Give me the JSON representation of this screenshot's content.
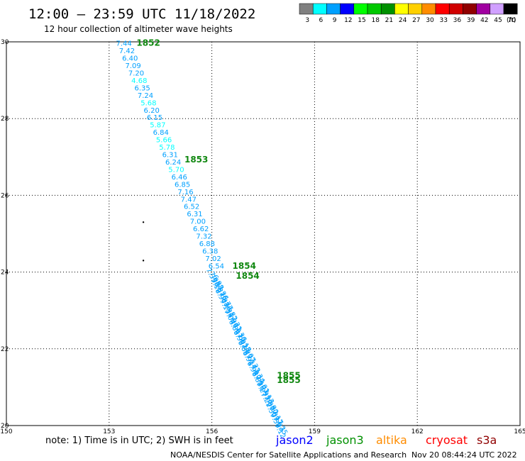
{
  "header": {
    "title": "12:00 – 23:59 UTC 11/18/2022",
    "subtitle": "12 hour collection of altimeter wave heights"
  },
  "legend": {
    "unit": "(ft)",
    "bins": [
      {
        "label": "3",
        "color": "#808080"
      },
      {
        "label": "6",
        "color": "#00ffff"
      },
      {
        "label": "9",
        "color": "#00a0ff"
      },
      {
        "label": "12",
        "color": "#0000ff"
      },
      {
        "label": "15",
        "color": "#00ff00"
      },
      {
        "label": "18",
        "color": "#00c800"
      },
      {
        "label": "21",
        "color": "#009000"
      },
      {
        "label": "24",
        "color": "#ffff00"
      },
      {
        "label": "27",
        "color": "#ffd000"
      },
      {
        "label": "30",
        "color": "#ff8c00"
      },
      {
        "label": "33",
        "color": "#ff0000"
      },
      {
        "label": "36",
        "color": "#d00000"
      },
      {
        "label": "39",
        "color": "#900000"
      },
      {
        "label": "42",
        "color": "#a000a0"
      },
      {
        "label": "45",
        "color": "#d0a0ff"
      },
      {
        "label": "70",
        "color": "#000000"
      }
    ]
  },
  "footer": {
    "note": "note:  1) Time is in UTC;  2) SWH is in feet",
    "satellites": [
      {
        "name": "jason2",
        "color": "#0000ff"
      },
      {
        "name": "jason3",
        "color": "#009000"
      },
      {
        "name": "altika",
        "color": "#ff8c00"
      },
      {
        "name": "cryosat",
        "color": "#ff0000"
      },
      {
        "name": "s3a",
        "color": "#900000"
      }
    ],
    "credit": "NOAA/NESDIS Center for Satellite Applications and Research",
    "timestamp": "Nov 20 08:44:24 UTC 2022"
  },
  "chart_data": {
    "type": "scatter",
    "xlim": [
      150,
      165
    ],
    "ylim": [
      20,
      30
    ],
    "x_ticks": [
      "150",
      "153",
      "156",
      "159",
      "162",
      "165"
    ],
    "y_ticks": [
      "20",
      "22",
      "24",
      "26",
      "28",
      "30"
    ],
    "grid": true,
    "track": {
      "start": [
        153.2,
        30.0
      ],
      "bend": [
        155.9,
        24.0
      ],
      "end": [
        157.9,
        20.0
      ],
      "labelled_values": [
        "7.44",
        "7.42",
        "6.40",
        "7.09",
        "7.20",
        "4.68",
        "6.35",
        "7.24",
        "5.68",
        "6.20",
        "6.15",
        "5.87",
        "6.84",
        "5.66",
        "5.78",
        "6.31",
        "6.24",
        "5.70",
        "6.46",
        "6.85",
        "7.16",
        "7.47",
        "6.52",
        "6.31",
        "7.00",
        "6.62",
        "7.32",
        "6.88",
        "6.38",
        "7.02",
        "6.54"
      ],
      "dense_values": [
        "7.33",
        "7.05",
        "6.98",
        "7.12",
        "6.87",
        "7.26",
        "6.94",
        "7.08",
        "6.77",
        "7.15",
        "7.31",
        "6.82",
        "7.04",
        "6.96",
        "7.21",
        "6.89",
        "7.11",
        "7.36",
        "6.93",
        "7.02",
        "7.18",
        "6.85",
        "7.29",
        "7.07",
        "6.91",
        "7.14",
        "7.23",
        "6.98",
        "7.10",
        "7.34",
        "6.88",
        "7.19",
        "7.01",
        "7.27",
        "6.95",
        "7.13",
        "7.22",
        "7.06",
        "6.90",
        "7.30",
        "7.09",
        "7.17",
        "7.38",
        "7.03",
        "7.25",
        "7.12"
      ]
    },
    "time_labels": [
      {
        "label": "1852",
        "lon": 153.8,
        "lat": 29.97
      },
      {
        "label": "1853",
        "lon": 155.2,
        "lat": 26.93
      },
      {
        "label": "1854",
        "lon": 156.6,
        "lat": 24.16
      },
      {
        "label": "1854",
        "lon": 156.7,
        "lat": 23.9
      },
      {
        "label": "1855",
        "lon": 157.9,
        "lat": 21.3
      },
      {
        "label": "1855",
        "lon": 157.9,
        "lat": 21.18
      }
    ],
    "markers": [
      {
        "lon": 154.0,
        "lat": 25.3
      },
      {
        "lon": 154.0,
        "lat": 24.3
      }
    ]
  }
}
